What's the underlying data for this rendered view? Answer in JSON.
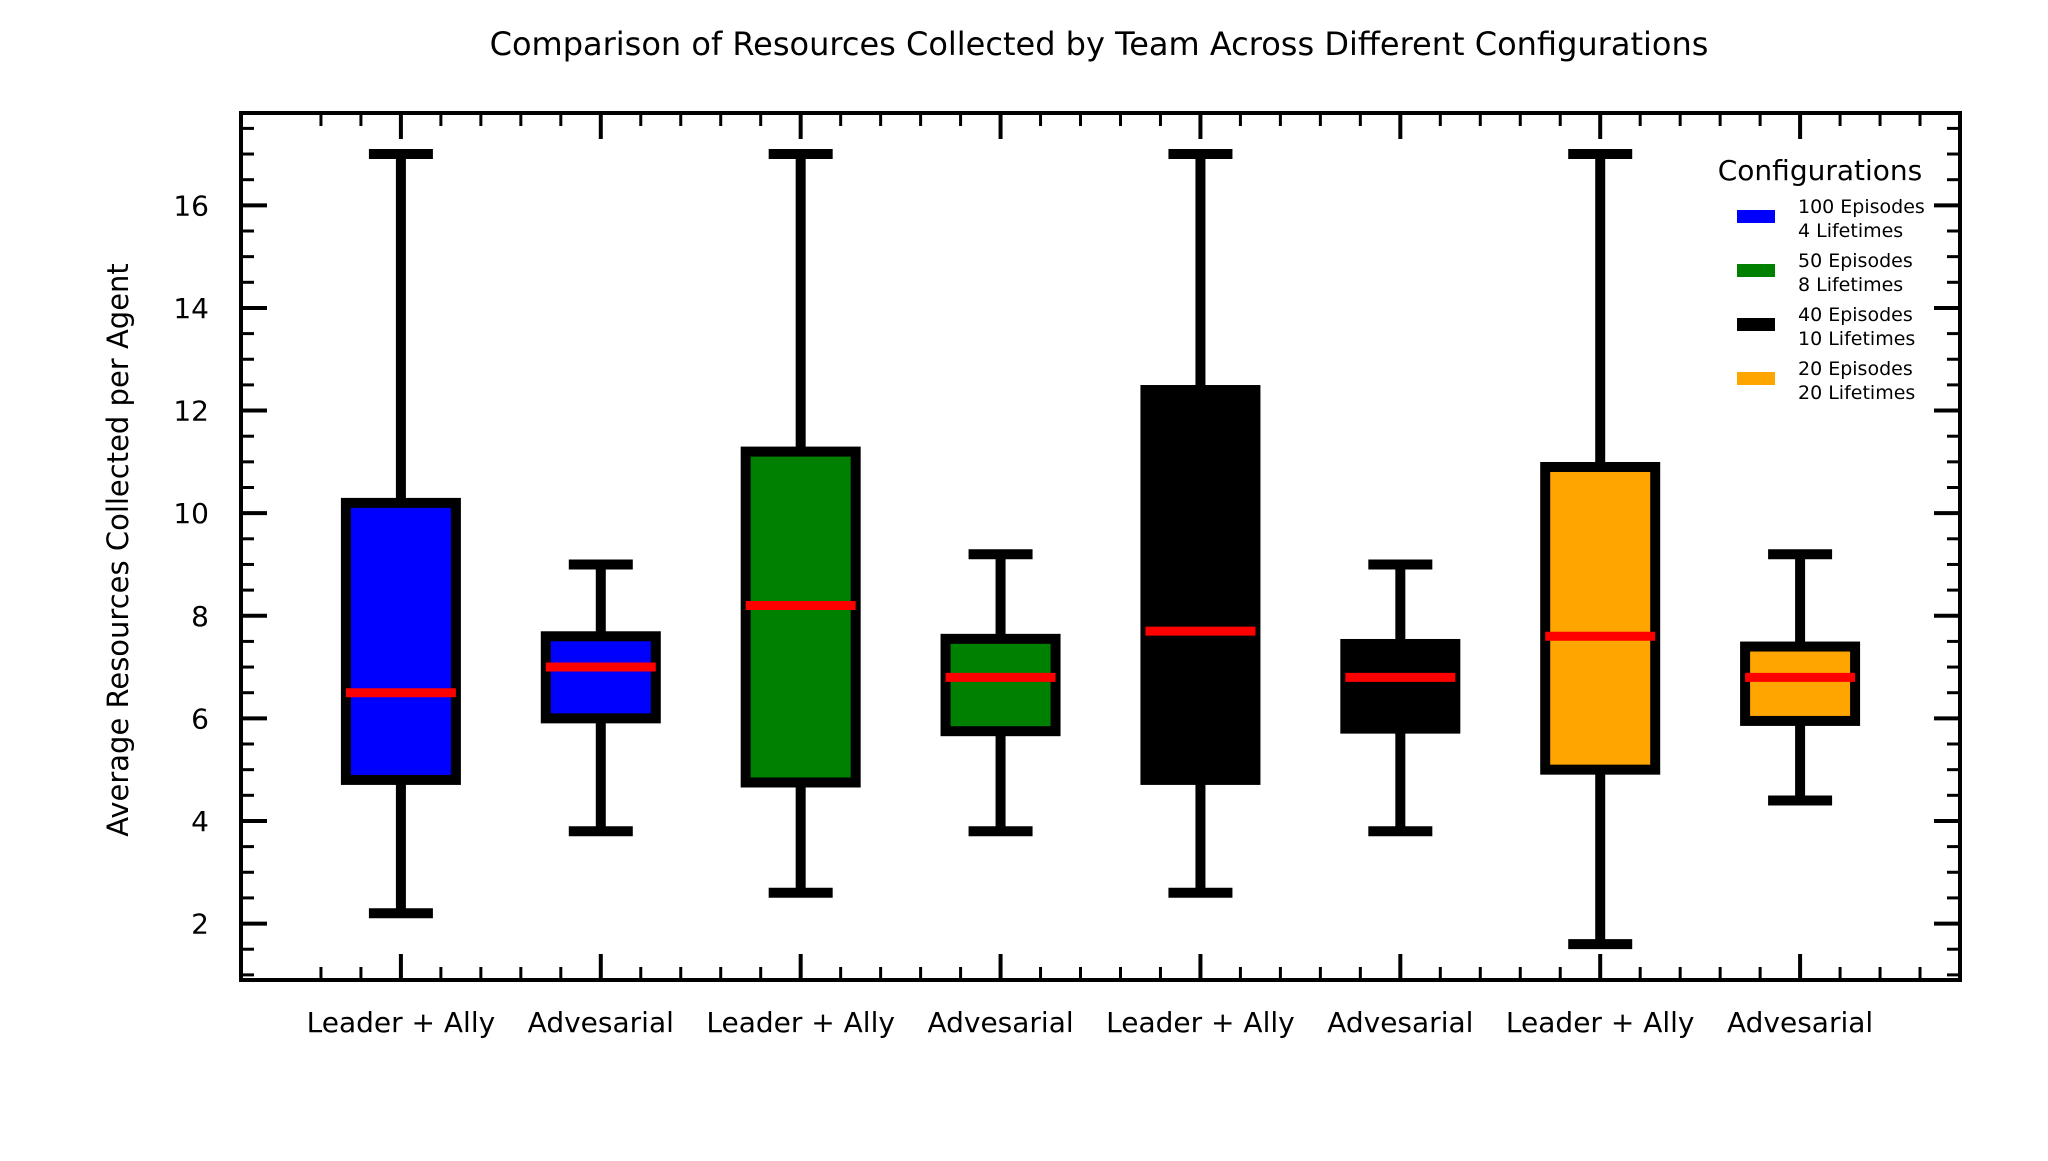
{
  "chart_data": {
    "type": "box",
    "title": "Comparison of Resources Collected by Team Across Different Configurations",
    "xlabel": "",
    "ylabel": "Average Resources Collected per Agent",
    "ylim": [
      0.9,
      17.8
    ],
    "yticks": [
      2,
      4,
      6,
      8,
      10,
      12,
      14,
      16
    ],
    "grid": false,
    "legend": {
      "title": "Configurations",
      "placement": "top-right",
      "entries": [
        {
          "line1": "100 Episodes",
          "line2": "4 Lifetimes",
          "color": "#0000ff"
        },
        {
          "line1": "50 Episodes",
          "line2": "8 Lifetimes",
          "color": "#008000"
        },
        {
          "line1": "40 Episodes",
          "line2": "10 Lifetimes",
          "color": "#000000"
        },
        {
          "line1": "20 Episodes",
          "line2": "20 Lifetimes",
          "color": "#ffa500"
        }
      ]
    },
    "median_color": "#ff0000",
    "categories": [
      "Leader + Ally",
      "Advesarial",
      "Leader + Ally",
      "Advesarial",
      "Leader + Ally",
      "Advesarial",
      "Leader + Ally",
      "Advesarial"
    ],
    "boxes": [
      {
        "label": "Leader + Ally",
        "config": 0,
        "color": "#0000ff",
        "whislo": 2.2,
        "q1": 4.8,
        "med": 6.5,
        "q3": 10.2,
        "whishi": 17.0
      },
      {
        "label": "Advesarial",
        "config": 0,
        "color": "#0000ff",
        "whislo": 3.8,
        "q1": 6.0,
        "med": 7.0,
        "q3": 7.6,
        "whishi": 9.0
      },
      {
        "label": "Leader + Ally",
        "config": 1,
        "color": "#008000",
        "whislo": 2.6,
        "q1": 4.75,
        "med": 8.2,
        "q3": 11.2,
        "whishi": 17.0
      },
      {
        "label": "Advesarial",
        "config": 1,
        "color": "#008000",
        "whislo": 3.8,
        "q1": 5.75,
        "med": 6.8,
        "q3": 7.55,
        "whishi": 9.2
      },
      {
        "label": "Leader + Ally",
        "config": 2,
        "color": "#000000",
        "whislo": 2.6,
        "q1": 4.8,
        "med": 7.7,
        "q3": 12.4,
        "whishi": 17.0
      },
      {
        "label": "Advesarial",
        "config": 2,
        "color": "#000000",
        "whislo": 3.8,
        "q1": 5.8,
        "med": 6.8,
        "q3": 7.45,
        "whishi": 9.0
      },
      {
        "label": "Leader + Ally",
        "config": 3,
        "color": "#ffa500",
        "whislo": 1.6,
        "q1": 5.0,
        "med": 7.6,
        "q3": 10.9,
        "whishi": 17.0
      },
      {
        "label": "Advesarial",
        "config": 3,
        "color": "#ffa500",
        "whislo": 4.4,
        "q1": 5.95,
        "med": 6.8,
        "q3": 7.4,
        "whishi": 9.2
      }
    ]
  }
}
